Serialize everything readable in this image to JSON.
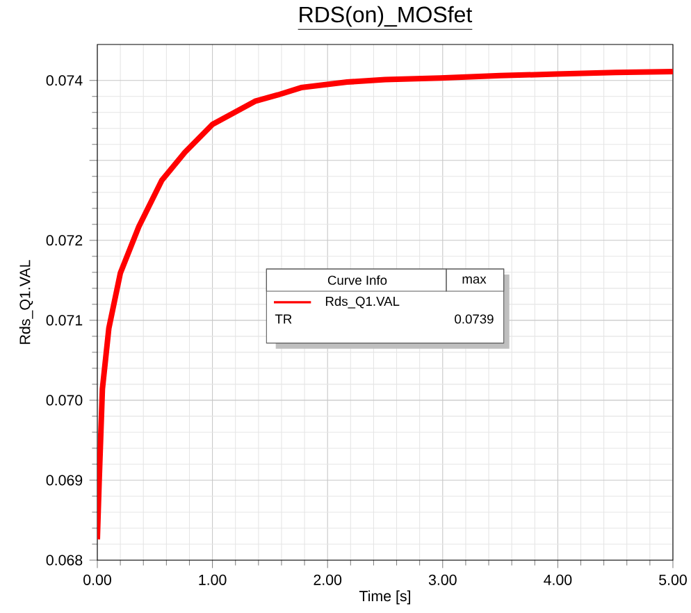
{
  "chart_data": {
    "type": "line",
    "title": "RDS(on)_MOSfet",
    "xlabel": "Time [s]",
    "ylabel": "Rds_Q1.VAL",
    "x": [
      0,
      0.016,
      0.044,
      0.1,
      0.2,
      0.36,
      0.56,
      0.76,
      1.0,
      1.37,
      1.57,
      1.77,
      2.17,
      2.5,
      2.98,
      3.5,
      3.99,
      4.5,
      5.0
    ],
    "series": [
      {
        "name": "Rds_Q1.VAL",
        "color": "#ff0000",
        "values": [
          0.06826,
          0.06899,
          0.07014,
          0.0709,
          0.07159,
          0.07217,
          0.07275,
          0.0731,
          0.07345,
          0.07374,
          0.07382,
          0.07391,
          0.07398,
          0.07401,
          0.07403,
          0.07406,
          0.07408,
          0.0741,
          0.07411
        ]
      }
    ],
    "xlim": [
      0,
      5
    ],
    "ylim": [
      0.068,
      0.07445
    ],
    "xticks": [
      {
        "value": 0,
        "label": "0.00"
      },
      {
        "value": 1,
        "label": "1.00"
      },
      {
        "value": 2,
        "label": "2.00"
      },
      {
        "value": 3,
        "label": "3.00"
      },
      {
        "value": 4,
        "label": "4.00"
      },
      {
        "value": 5,
        "label": "5.00"
      }
    ],
    "yticks": [
      {
        "value": 0.068,
        "label": "0.068"
      },
      {
        "value": 0.069,
        "label": "0.069"
      },
      {
        "value": 0.07,
        "label": "0.070"
      },
      {
        "value": 0.071,
        "label": "0.071"
      },
      {
        "value": 0.072,
        "label": "0.072"
      },
      {
        "value": 0.073,
        "label": null
      },
      {
        "value": 0.074,
        "label": "0.074"
      }
    ],
    "grid": true,
    "legend": "center",
    "marker": "none",
    "line_style": "solid",
    "annotations": [
      "Curve Info",
      "max",
      "TR",
      "0.0739"
    ]
  }
}
